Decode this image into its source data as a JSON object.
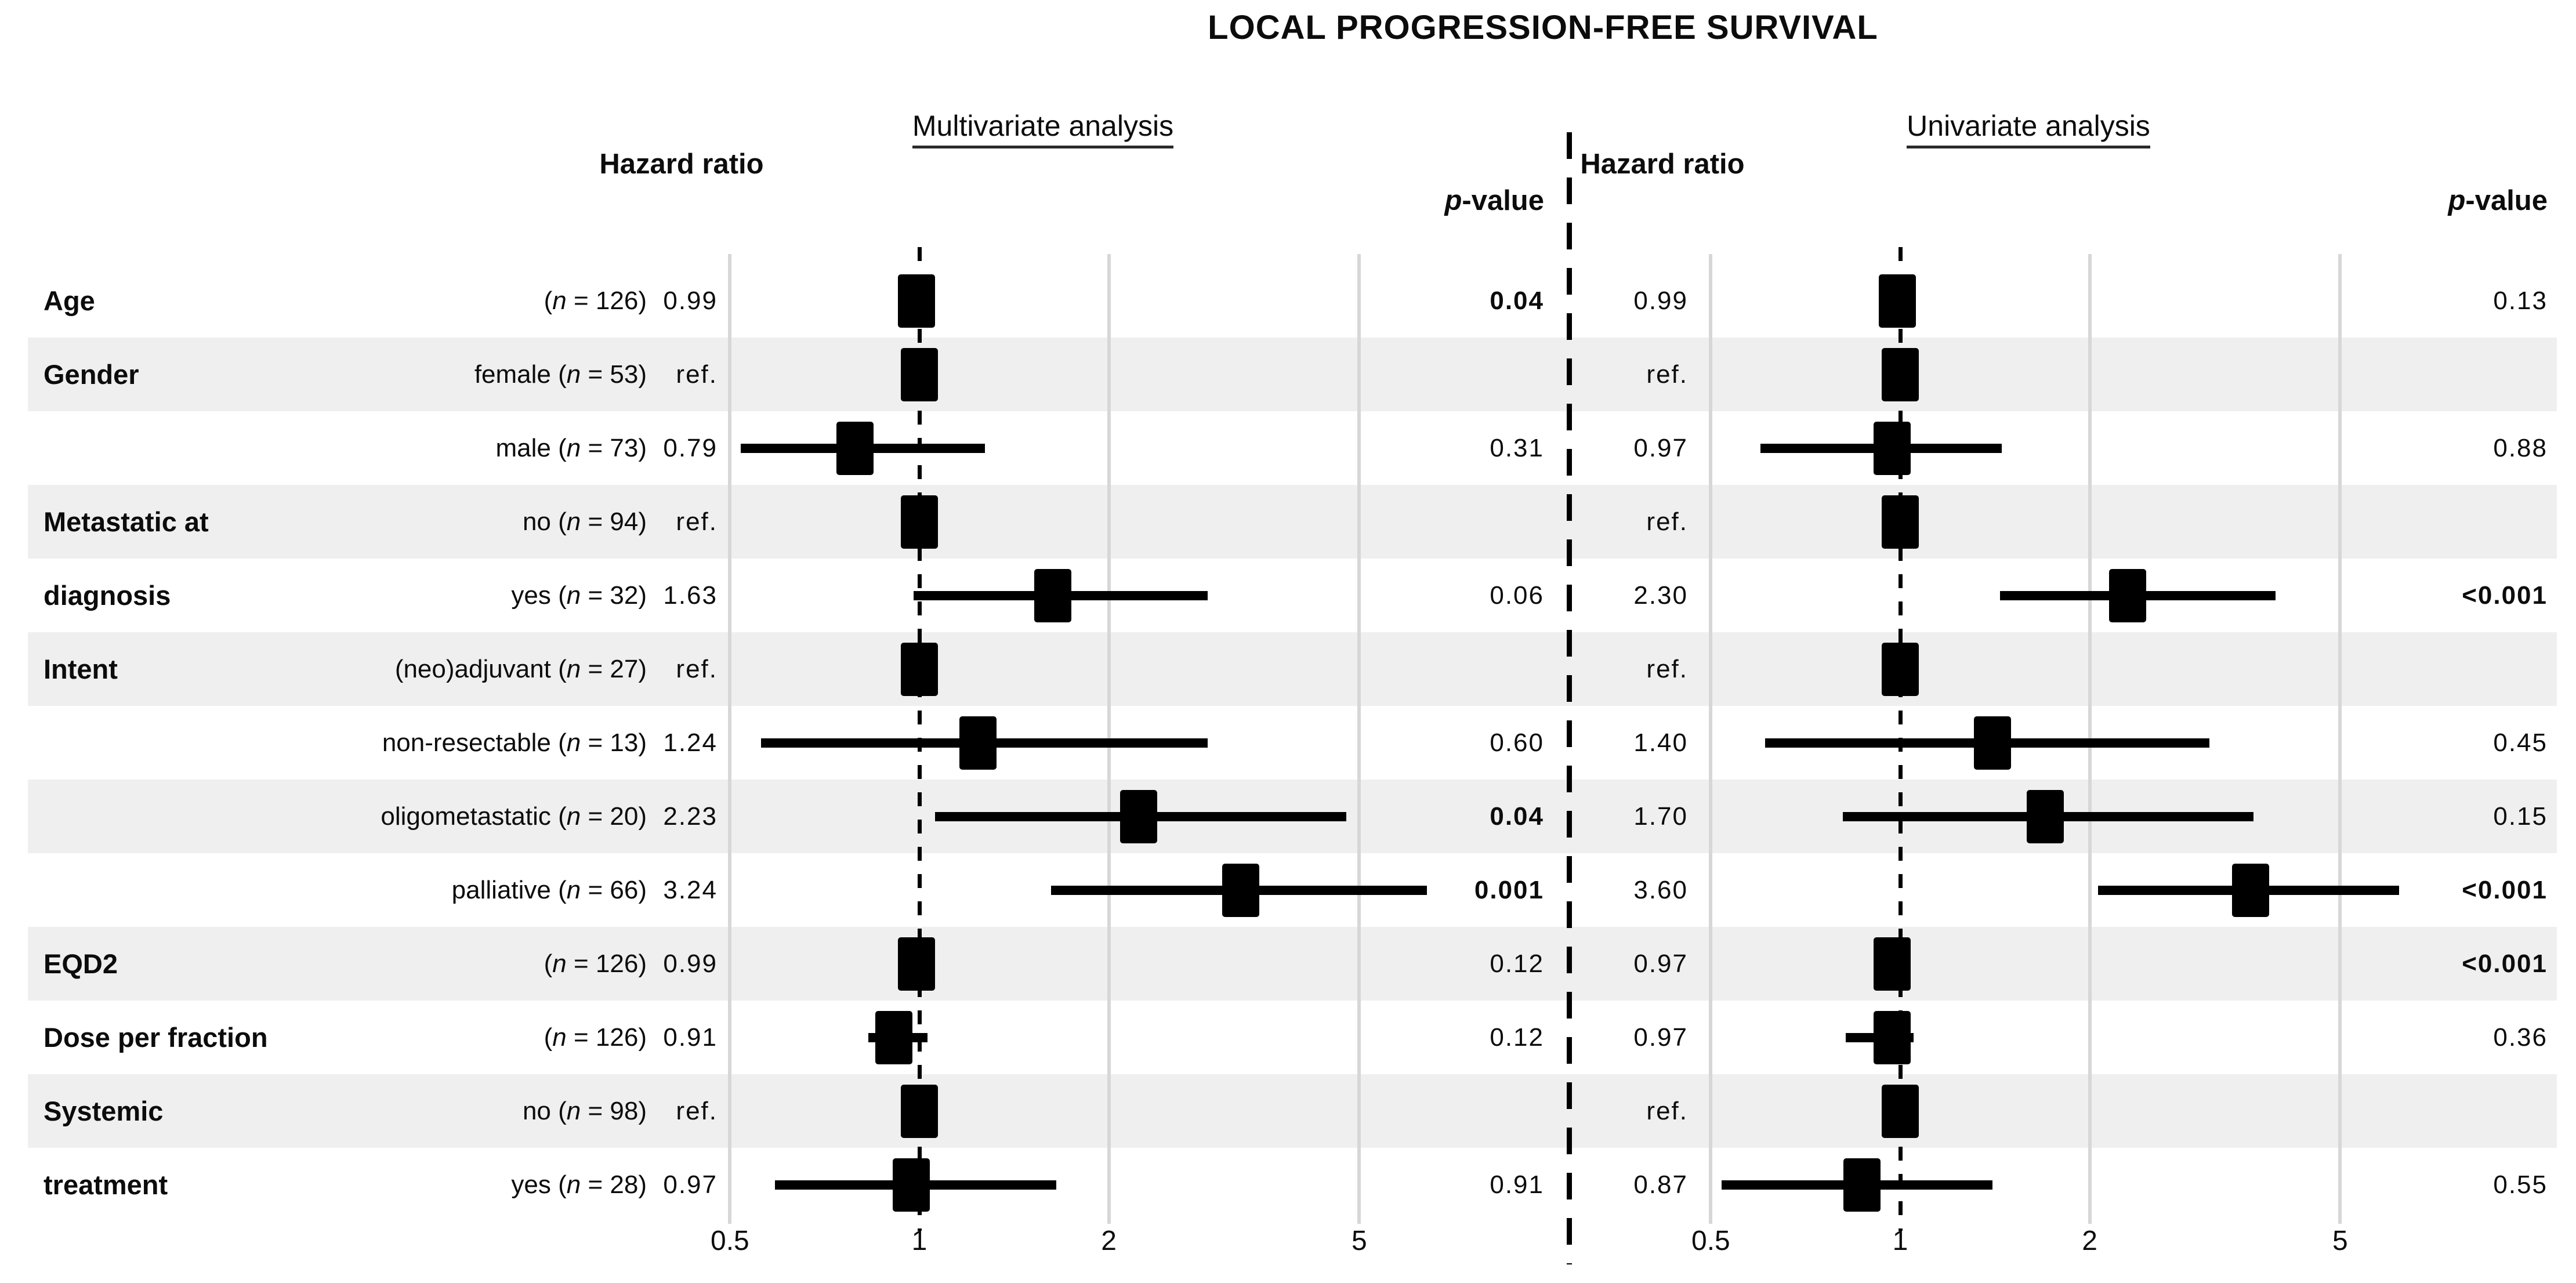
{
  "colors": {
    "background": "#ffffff",
    "stripe": "#efefef",
    "gridline": "#d7d7d7",
    "marker": "#000000",
    "text": "#0c0c0c"
  },
  "chart_data": {
    "type": "forest",
    "title": "LOCAL PROGRESSION-FREE SURVIVAL",
    "x_scale": "log",
    "x_ticks": [
      "0.5",
      "1",
      "2",
      "5"
    ],
    "x_tick_values": [
      0.5,
      1,
      2,
      5
    ],
    "x_range": [
      0.45,
      7.5
    ],
    "reference_value": 1,
    "grid": "vertical-only",
    "panels": [
      {
        "id": "mv",
        "header": "Multivariate analysis",
        "hr_header": "Hazard ratio",
        "p_header": "p-value"
      },
      {
        "id": "uv",
        "header": "Univariate analysis",
        "hr_header": "Hazard ratio",
        "p_header": "p-value"
      }
    ],
    "rows": [
      {
        "variable": "Age",
        "variable_rows": 1,
        "category": "(n = 126)",
        "shaded": false,
        "mv": {
          "hr": "0.99",
          "est": 0.99,
          "lo": null,
          "hi": null,
          "ref": false,
          "p": "0.04",
          "p_bold": true
        },
        "uv": {
          "hr": "0.99",
          "est": 0.99,
          "lo": null,
          "hi": null,
          "ref": false,
          "p": "0.13",
          "p_bold": false
        }
      },
      {
        "variable": "Gender",
        "variable_rows": 1,
        "category": "female (n = 53)",
        "shaded": true,
        "mv": {
          "hr": "ref.",
          "est": 1.0,
          "lo": null,
          "hi": null,
          "ref": true,
          "p": "",
          "p_bold": false
        },
        "uv": {
          "hr": "ref.",
          "est": 1.0,
          "lo": null,
          "hi": null,
          "ref": true,
          "p": "",
          "p_bold": false
        }
      },
      {
        "variable": "",
        "variable_rows": 1,
        "category": "male (n = 73)",
        "shaded": false,
        "mv": {
          "hr": "0.79",
          "est": 0.79,
          "lo": 0.52,
          "hi": 1.27,
          "ref": false,
          "p": "0.31",
          "p_bold": false
        },
        "uv": {
          "hr": "0.97",
          "est": 0.97,
          "lo": 0.6,
          "hi": 1.45,
          "ref": false,
          "p": "0.88",
          "p_bold": false
        }
      },
      {
        "variable": "Metastatic at\ndiagnosis",
        "variable_rows": 2,
        "category": "no (n = 94)",
        "shaded": true,
        "mv": {
          "hr": "ref.",
          "est": 1.0,
          "lo": null,
          "hi": null,
          "ref": true,
          "p": "",
          "p_bold": false
        },
        "uv": {
          "hr": "ref.",
          "est": 1.0,
          "lo": null,
          "hi": null,
          "ref": true,
          "p": "",
          "p_bold": false
        }
      },
      {
        "variable": "",
        "variable_rows": 1,
        "category": "yes (n = 32)",
        "shaded": false,
        "mv": {
          "hr": "1.63",
          "est": 1.63,
          "lo": 0.98,
          "hi": 2.87,
          "ref": false,
          "p": "0.06",
          "p_bold": false
        },
        "uv": {
          "hr": "2.30",
          "est": 2.3,
          "lo": 1.44,
          "hi": 3.95,
          "ref": false,
          "p": "<0.001",
          "p_bold": true
        }
      },
      {
        "variable": "Intent",
        "variable_rows": 1,
        "category": "(neo)adjuvant (n = 27)",
        "shaded": true,
        "mv": {
          "hr": "ref.",
          "est": 1.0,
          "lo": null,
          "hi": null,
          "ref": true,
          "p": "",
          "p_bold": false
        },
        "uv": {
          "hr": "ref.",
          "est": 1.0,
          "lo": null,
          "hi": null,
          "ref": true,
          "p": "",
          "p_bold": false
        }
      },
      {
        "variable": "",
        "variable_rows": 1,
        "category": "non-resectable (n = 13)",
        "shaded": false,
        "mv": {
          "hr": "1.24",
          "est": 1.24,
          "lo": 0.56,
          "hi": 2.87,
          "ref": false,
          "p": "0.60",
          "p_bold": false
        },
        "uv": {
          "hr": "1.40",
          "est": 1.4,
          "lo": 0.61,
          "hi": 3.1,
          "ref": false,
          "p": "0.45",
          "p_bold": false
        }
      },
      {
        "variable": "",
        "variable_rows": 1,
        "category": "oligometastatic (n = 20)",
        "shaded": true,
        "mv": {
          "hr": "2.23",
          "est": 2.23,
          "lo": 1.06,
          "hi": 4.77,
          "ref": false,
          "p": "0.04",
          "p_bold": true
        },
        "uv": {
          "hr": "1.70",
          "est": 1.7,
          "lo": 0.81,
          "hi": 3.64,
          "ref": false,
          "p": "0.15",
          "p_bold": false
        }
      },
      {
        "variable": "",
        "variable_rows": 1,
        "category": "palliative (n = 66)",
        "shaded": false,
        "mv": {
          "hr": "3.24",
          "est": 3.24,
          "lo": 1.62,
          "hi": 6.4,
          "ref": false,
          "p": "0.001",
          "p_bold": true
        },
        "uv": {
          "hr": "3.60",
          "est": 3.6,
          "lo": 2.06,
          "hi": 6.2,
          "ref": false,
          "p": "<0.001",
          "p_bold": true
        }
      },
      {
        "variable": "EQD2",
        "variable_rows": 1,
        "category": "(n = 126)",
        "shaded": true,
        "mv": {
          "hr": "0.99",
          "est": 0.99,
          "lo": null,
          "hi": null,
          "ref": false,
          "p": "0.12",
          "p_bold": false
        },
        "uv": {
          "hr": "0.97",
          "est": 0.97,
          "lo": null,
          "hi": null,
          "ref": false,
          "p": "<0.001",
          "p_bold": true
        }
      },
      {
        "variable": "Dose per fraction",
        "variable_rows": 1,
        "category": "(n = 126)",
        "shaded": false,
        "mv": {
          "hr": "0.91",
          "est": 0.91,
          "lo": 0.83,
          "hi": 1.03,
          "ref": false,
          "p": "0.12",
          "p_bold": false
        },
        "uv": {
          "hr": "0.97",
          "est": 0.97,
          "lo": 0.82,
          "hi": 1.05,
          "ref": false,
          "p": "0.36",
          "p_bold": false
        }
      },
      {
        "variable": "Systemic\ntreatment",
        "variable_rows": 2,
        "category": "no (n = 98)",
        "shaded": true,
        "mv": {
          "hr": "ref.",
          "est": 1.0,
          "lo": null,
          "hi": null,
          "ref": true,
          "p": "",
          "p_bold": false
        },
        "uv": {
          "hr": "ref.",
          "est": 1.0,
          "lo": null,
          "hi": null,
          "ref": true,
          "p": "",
          "p_bold": false
        }
      },
      {
        "variable": "",
        "variable_rows": 1,
        "category": "yes (n = 28)",
        "shaded": false,
        "mv": {
          "hr": "0.97",
          "est": 0.97,
          "lo": 0.59,
          "hi": 1.65,
          "ref": false,
          "p": "0.91",
          "p_bold": false
        },
        "uv": {
          "hr": "0.87",
          "est": 0.87,
          "lo": 0.52,
          "hi": 1.4,
          "ref": false,
          "p": "0.55",
          "p_bold": false
        }
      }
    ]
  }
}
